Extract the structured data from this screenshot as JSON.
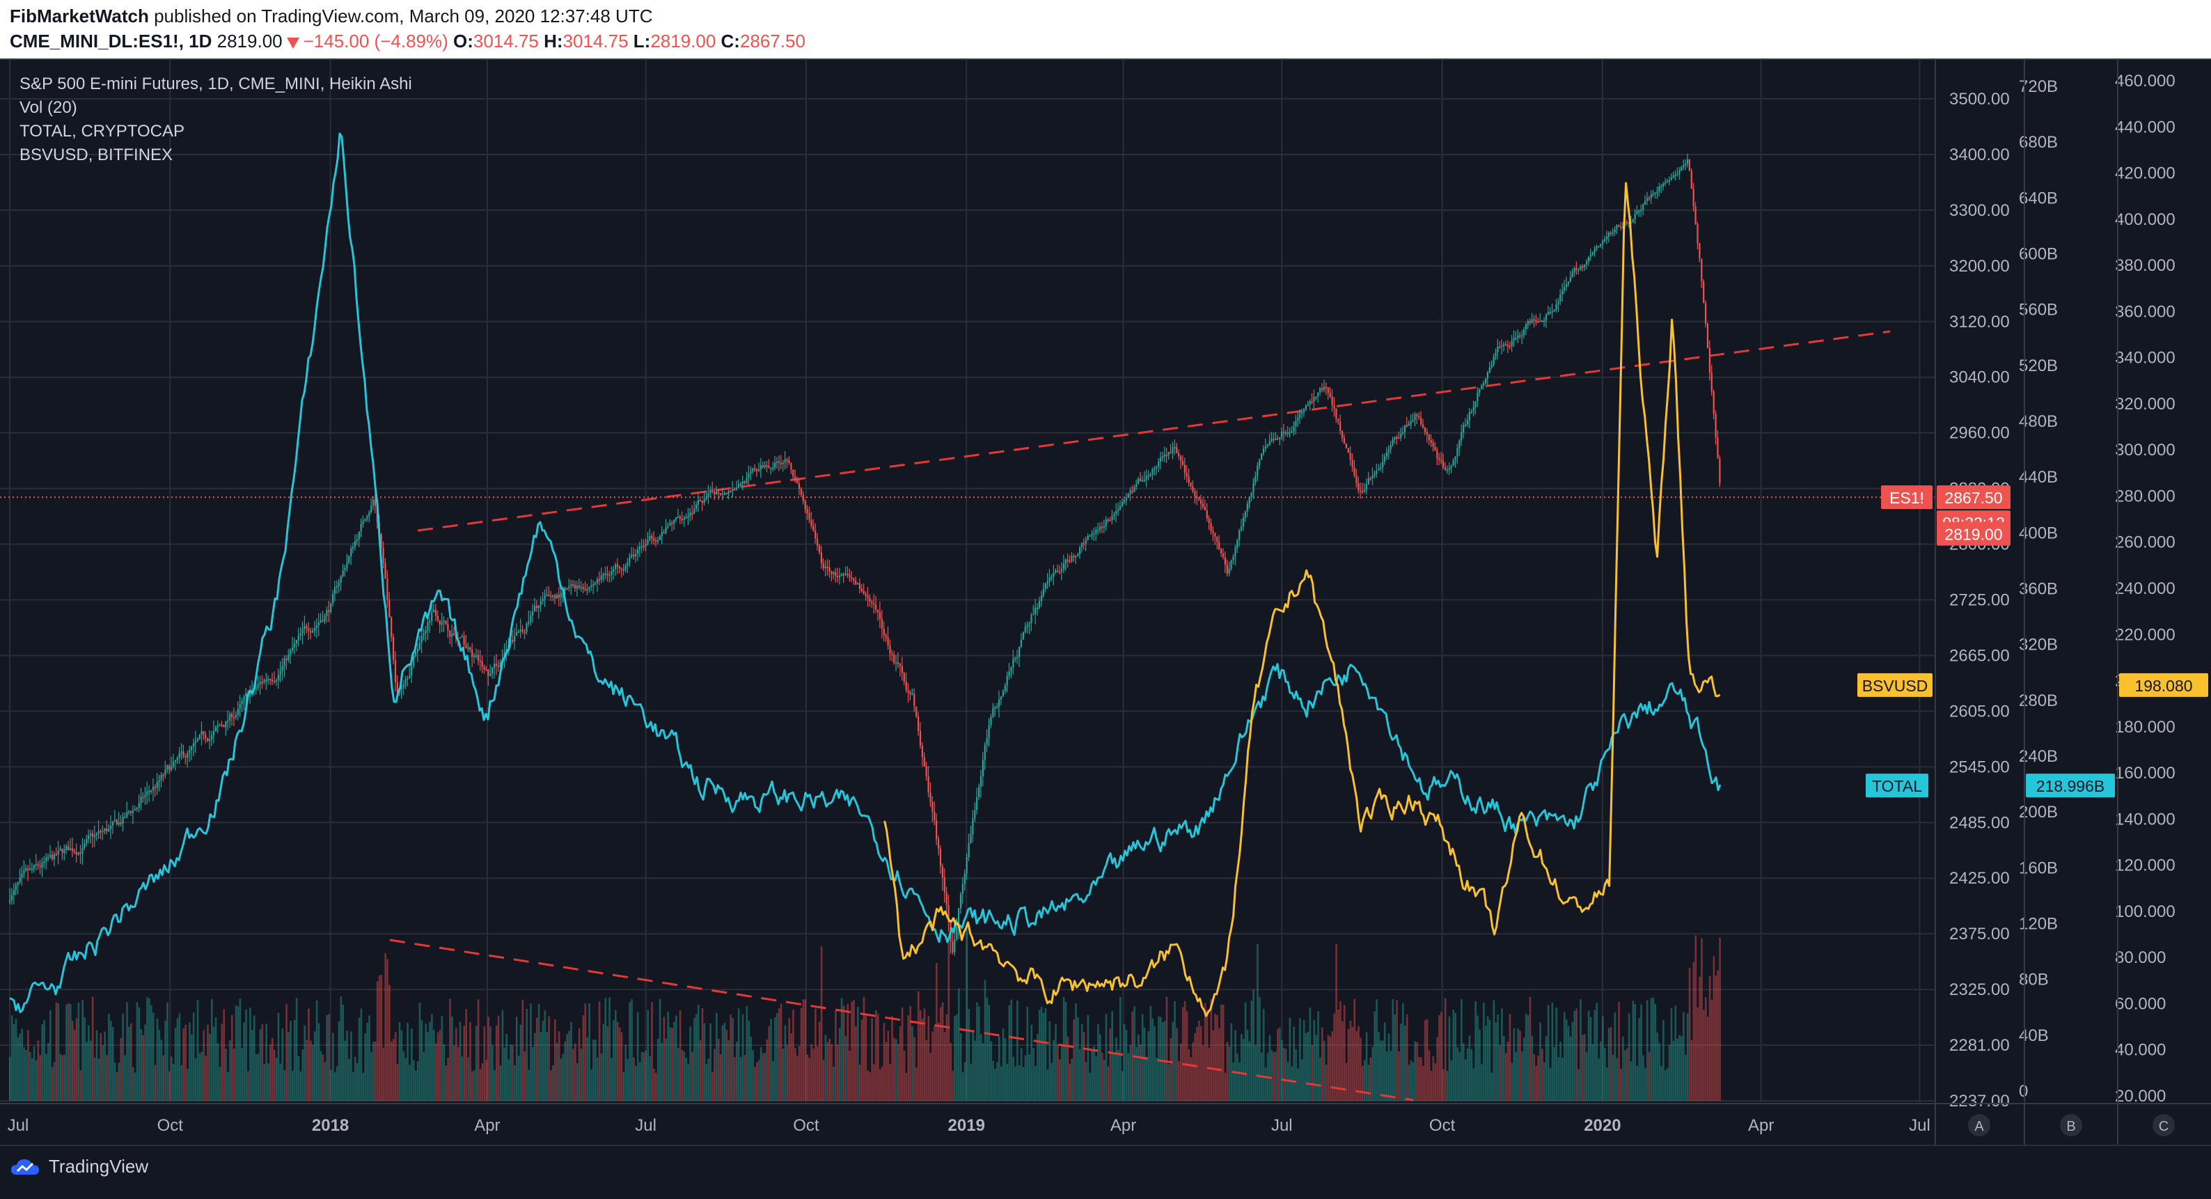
{
  "header": {
    "publisher": "FibMarketWatch",
    "published_text": "published on TradingView.com, March 09, 2020 12:37:48 UTC",
    "symbol": "CME_MINI_DL:ES1!, 1D",
    "last": "2819.00",
    "change": "−145.00 (−4.89%)",
    "open_label": "O:",
    "open": "3014.75",
    "high_label": "H:",
    "high": "3014.75",
    "low_label": "L:",
    "low": "2819.00",
    "close_label": "C:",
    "close": "2867.50"
  },
  "legend": {
    "main": "S&P 500 E-mini Futures, 1D, CME_MINI, Heikin Ashi",
    "vol": "Vol (20)",
    "total": "TOTAL, CRYPTOCAP",
    "bsv": "BSVUSD, BITFINEX"
  },
  "footer": {
    "brand": "TradingView"
  },
  "colors": {
    "background": "#131722",
    "grid": "#2a2e39",
    "up": "#26a69a",
    "down": "#ef5350",
    "total_line": "#26c6da",
    "bsv_line": "#fbc02d",
    "trend": "#e53935",
    "axis_text": "#b2b5be"
  },
  "chart_data": {
    "type": "line",
    "x_labels": [
      "Jul",
      "Oct",
      "2018",
      "Apr",
      "Jul",
      "Oct",
      "2019",
      "Apr",
      "Jul",
      "Oct",
      "2020",
      "Apr",
      "Jul"
    ],
    "axes": {
      "A": {
        "ticks": [
          "3500.00",
          "3400.00",
          "3300.00",
          "3200.00",
          "3120.00",
          "3040.00",
          "2960.00",
          "2880.00",
          "2800.00",
          "2725.00",
          "2665.00",
          "2605.00",
          "2545.00",
          "2485.00",
          "2425.00",
          "2375.00",
          "2325.00",
          "2281.00",
          "2237.00"
        ],
        "ylim": [
          2237,
          3500
        ]
      },
      "B": {
        "ticks": [
          "720B",
          "680B",
          "640B",
          "600B",
          "560B",
          "520B",
          "480B",
          "440B",
          "400B",
          "360B",
          "320B",
          "280B",
          "240B",
          "200B",
          "160B",
          "120B",
          "80B",
          "40B",
          "0"
        ],
        "ylim": [
          0,
          720
        ]
      },
      "C": {
        "ticks": [
          "460.000",
          "440.000",
          "420.000",
          "400.000",
          "380.000",
          "360.000",
          "340.000",
          "320.000",
          "300.000",
          "280.000",
          "260.000",
          "240.000",
          "220.000",
          "200.000",
          "180.000",
          "160.000",
          "140.000",
          "120.000",
          "100.000",
          "80.000",
          "60.000",
          "40.000",
          "20.000"
        ],
        "ylim": [
          20,
          460
        ]
      }
    },
    "scale_buttons": [
      "A",
      "B",
      "C"
    ],
    "price_labels": {
      "es1_tag": "ES1!",
      "es1_value": "2867.50",
      "countdown": "08:22:12",
      "low_value": "2819.00",
      "bsv_tag": "BSVUSD",
      "bsv_value": "198.080",
      "total_tag": "TOTAL",
      "total_value": "218.996B"
    },
    "series": [
      {
        "name": "ES1!",
        "axis": "A",
        "style": "heikin-ashi",
        "x": [
          "2017-07-01",
          "2017-08-01",
          "2017-09-01",
          "2017-10-01",
          "2017-11-01",
          "2017-12-01",
          "2018-01-01",
          "2018-01-26",
          "2018-02-08",
          "2018-03-01",
          "2018-04-02",
          "2018-05-01",
          "2018-06-01",
          "2018-07-02",
          "2018-08-01",
          "2018-09-21",
          "2018-10-10",
          "2018-11-01",
          "2018-12-01",
          "2018-12-24",
          "2019-01-15",
          "2019-02-15",
          "2019-03-15",
          "2019-04-30",
          "2019-05-31",
          "2019-06-20",
          "2019-07-26",
          "2019-08-15",
          "2019-09-15",
          "2019-10-03",
          "2019-11-01",
          "2019-12-01",
          "2020-01-01",
          "2020-02-19",
          "2020-03-09"
        ],
        "y": [
          2410,
          2450,
          2480,
          2540,
          2590,
          2650,
          2720,
          2870,
          2620,
          2720,
          2640,
          2720,
          2750,
          2800,
          2860,
          2930,
          2770,
          2740,
          2620,
          2360,
          2600,
          2740,
          2820,
          2940,
          2760,
          2940,
          3020,
          2880,
          2990,
          2900,
          3080,
          3140,
          3240,
          3390,
          2867.5
        ]
      },
      {
        "name": "TOTAL",
        "axis": "B",
        "x": [
          "2017-07-01",
          "2017-08-01",
          "2017-09-01",
          "2017-10-01",
          "2017-11-01",
          "2017-12-01",
          "2017-12-20",
          "2018-01-07",
          "2018-02-06",
          "2018-03-05",
          "2018-04-01",
          "2018-05-01",
          "2018-06-01",
          "2018-07-01",
          "2018-08-01",
          "2018-09-01",
          "2018-10-01",
          "2018-11-01",
          "2018-12-15",
          "2019-01-15",
          "2019-02-15",
          "2019-03-15",
          "2019-04-15",
          "2019-05-15",
          "2019-06-26",
          "2019-07-15",
          "2019-08-15",
          "2019-09-20",
          "2019-10-15",
          "2019-11-15",
          "2019-12-15",
          "2020-01-15",
          "2020-02-13",
          "2020-03-09"
        ],
        "y": [
          60,
          80,
          125,
          160,
          220,
          350,
          520,
          690,
          290,
          350,
          270,
          410,
          300,
          270,
          220,
          210,
          210,
          200,
          120,
          120,
          125,
          140,
          180,
          190,
          300,
          280,
          310,
          220,
          215,
          190,
          190,
          265,
          285,
          219
        ]
      },
      {
        "name": "BSVUSD",
        "axis": "C",
        "x": [
          "2018-11-15",
          "2018-11-25",
          "2018-12-15",
          "2019-01-15",
          "2019-02-15",
          "2019-03-15",
          "2019-04-15",
          "2019-04-30",
          "2019-05-20",
          "2019-05-30",
          "2019-06-15",
          "2019-06-26",
          "2019-07-15",
          "2019-08-01",
          "2019-08-15",
          "2019-09-15",
          "2019-10-01",
          "2019-11-01",
          "2019-11-15",
          "2019-12-15",
          "2020-01-05",
          "2020-01-14",
          "2020-02-01",
          "2020-02-10",
          "2020-02-20",
          "2020-03-09"
        ],
        "y": [
          140,
          80,
          95,
          85,
          65,
          70,
          70,
          85,
          60,
          70,
          190,
          220,
          250,
          200,
          140,
          150,
          135,
          90,
          140,
          100,
          110,
          420,
          250,
          360,
          200,
          198.08
        ]
      }
    ]
  }
}
